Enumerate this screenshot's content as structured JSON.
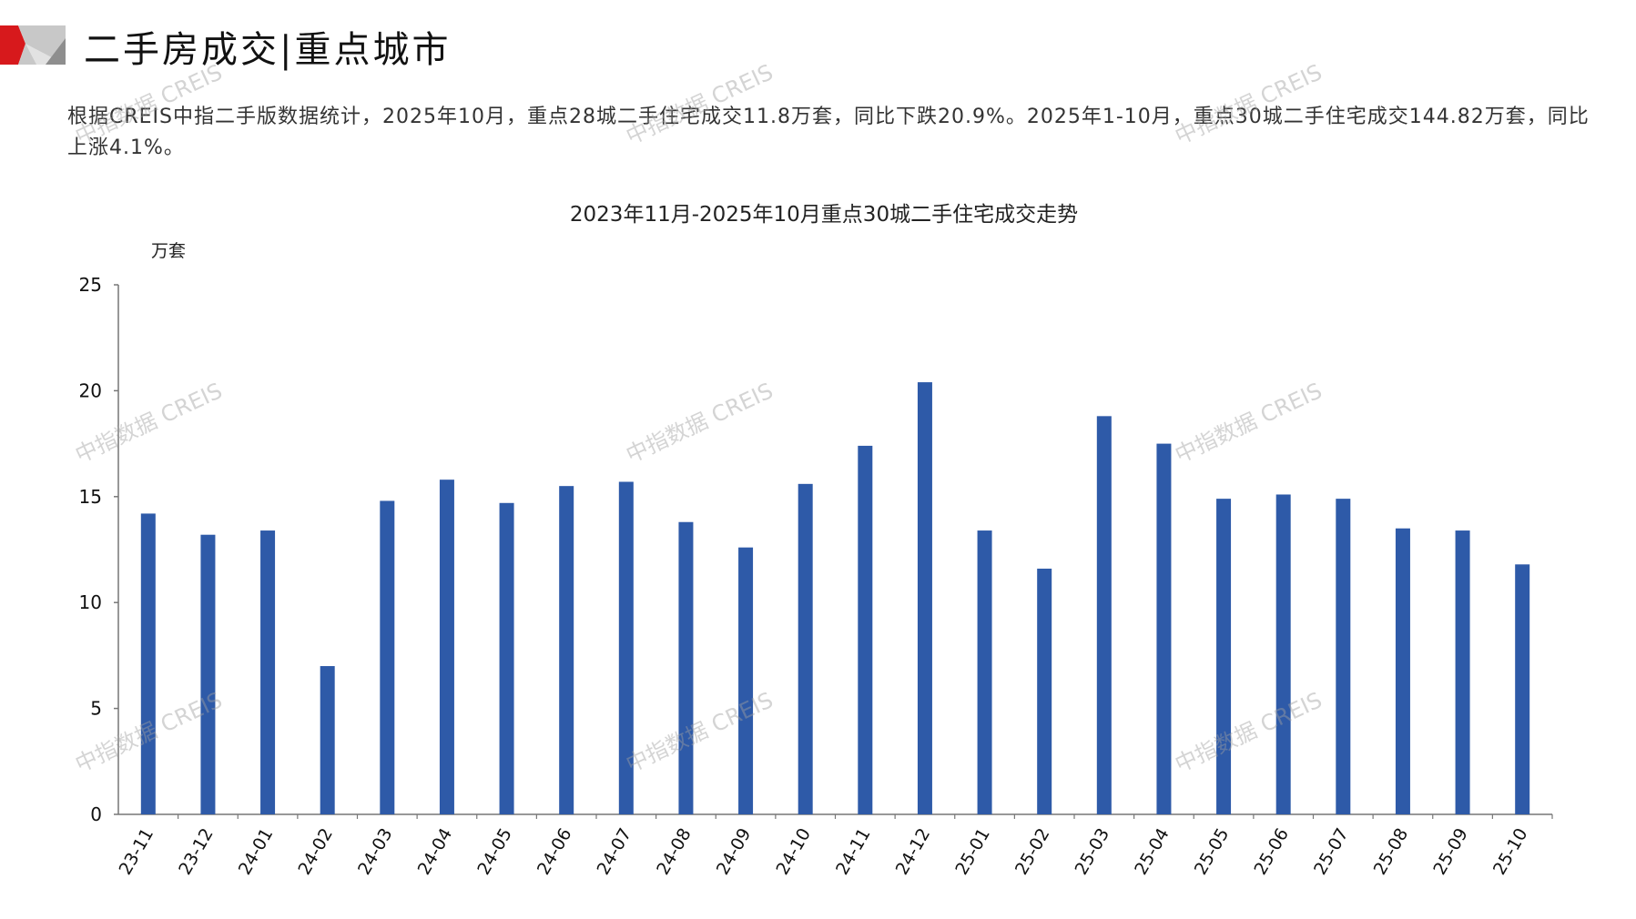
{
  "header": {
    "title": "二手房成交|重点城市"
  },
  "summary": "根据CREIS中指二手版数据统计，2025年10月，重点28城二手住宅成交11.8万套，同比下跌20.9%。2025年1-10月，重点30城二手住宅成交144.82万套，同比上涨4.1%。",
  "watermark": "中指数据 CREIS",
  "colors": {
    "bar": "#2E5AA8",
    "accent": "#D7191C"
  },
  "chart_data": {
    "type": "bar",
    "title": "2023年11月-2025年10月重点30城二手住宅成交走势",
    "ylabel": "万套",
    "xlabel": "",
    "ylim": [
      0,
      25
    ],
    "yticks": [
      "0",
      "5",
      "10",
      "15",
      "20",
      "25"
    ],
    "grid": false,
    "categories": [
      "23-11",
      "23-12",
      "24-01",
      "24-02",
      "24-03",
      "24-04",
      "24-05",
      "24-06",
      "24-07",
      "24-08",
      "24-09",
      "24-10",
      "24-11",
      "24-12",
      "25-01",
      "25-02",
      "25-03",
      "25-04",
      "25-05",
      "25-06",
      "25-07",
      "25-08",
      "25-09",
      "25-10"
    ],
    "values": [
      14.2,
      13.2,
      13.4,
      7.0,
      14.8,
      15.8,
      14.7,
      15.5,
      15.7,
      13.8,
      12.6,
      15.6,
      17.4,
      20.4,
      13.4,
      11.6,
      18.8,
      17.5,
      14.9,
      15.1,
      14.9,
      13.5,
      13.4,
      11.8
    ]
  }
}
